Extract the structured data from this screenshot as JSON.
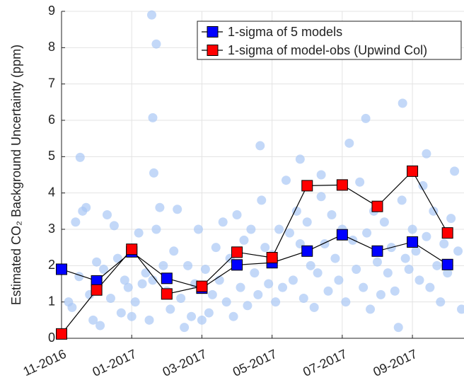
{
  "chart_data": {
    "type": "line",
    "ylabel": "Estimated CO₂ Background Uncertainty (ppm)",
    "x": [
      0,
      1,
      2,
      3,
      4,
      5,
      6,
      7,
      8,
      9,
      10,
      11
    ],
    "xlim": [
      0,
      11.47
    ],
    "xticks": [
      {
        "value": 0,
        "label": "11-2016"
      },
      {
        "value": 2,
        "label": "01-2017"
      },
      {
        "value": 4,
        "label": "03-2017"
      },
      {
        "value": 6,
        "label": "05-2017"
      },
      {
        "value": 8,
        "label": "07-2017"
      },
      {
        "value": 10,
        "label": "09-2017"
      }
    ],
    "ylim": [
      0,
      9
    ],
    "yticks": [
      0,
      1,
      2,
      3,
      4,
      5,
      6,
      7,
      8,
      9
    ],
    "grid": true,
    "legend": "upper right",
    "series": [
      {
        "name": "1-sigma of 5 models",
        "color": "#0000ff",
        "values": [
          1.9,
          1.58,
          2.38,
          1.65,
          1.38,
          2.02,
          2.08,
          2.4,
          2.85,
          2.4,
          2.65,
          2.03
        ]
      },
      {
        "name": "1-sigma of model-obs (Upwind Col)",
        "color": "#ff0000",
        "values": [
          0.12,
          1.33,
          2.45,
          1.22,
          1.43,
          2.37,
          2.22,
          4.2,
          4.22,
          3.63,
          4.6,
          2.9
        ]
      }
    ],
    "points": {
      "color": "#a9c8f5",
      "x": [
        0.2,
        0.3,
        0.4,
        0.5,
        0.6,
        0.7,
        0.8,
        0.9,
        1.0,
        1.1,
        1.2,
        1.3,
        1.4,
        1.5,
        1.6,
        1.7,
        1.8,
        1.9,
        2.0,
        2.1,
        2.2,
        2.3,
        2.4,
        2.5,
        2.6,
        2.7,
        2.8,
        2.9,
        3.0,
        3.1,
        3.2,
        3.3,
        3.4,
        3.5,
        3.6,
        3.7,
        3.8,
        3.9,
        4.0,
        4.1,
        4.2,
        4.3,
        4.4,
        4.5,
        4.6,
        4.7,
        4.8,
        4.9,
        5.0,
        5.1,
        5.2,
        5.3,
        5.4,
        5.5,
        5.6,
        5.7,
        5.8,
        5.9,
        6.0,
        6.1,
        6.2,
        6.3,
        6.5,
        6.6,
        6.7,
        6.8,
        6.9,
        7.0,
        7.1,
        7.2,
        7.3,
        7.4,
        7.5,
        7.6,
        7.7,
        7.8,
        7.9,
        8.0,
        8.1,
        8.3,
        8.4,
        8.5,
        8.6,
        8.7,
        8.8,
        8.9,
        9.0,
        9.1,
        9.2,
        9.3,
        9.4,
        9.5,
        9.6,
        9.7,
        9.8,
        9.9,
        10.0,
        10.1,
        10.2,
        10.3,
        10.4,
        10.5,
        10.6,
        10.7,
        10.8,
        10.9,
        11.0,
        11.1,
        11.2,
        11.3,
        11.4,
        2.57,
        2.7,
        2.6,
        2.63,
        0.53,
        5.66,
        8.67,
        9.72,
        8.2,
        10.4,
        6.8,
        7.4,
        6.4
      ],
      "values": [
        1.0,
        0.85,
        3.2,
        1.7,
        3.5,
        3.6,
        1.2,
        0.5,
        2.1,
        0.35,
        1.9,
        3.4,
        1.1,
        3.1,
        2.2,
        0.7,
        1.6,
        1.4,
        0.6,
        1.0,
        2.9,
        1.5,
        1.8,
        0.5,
        1.6,
        3.0,
        3.6,
        2.0,
        1.3,
        0.8,
        2.4,
        3.55,
        1.1,
        0.3,
        2.0,
        0.6,
        1.5,
        3.0,
        0.5,
        1.9,
        0.7,
        1.2,
        2.5,
        1.6,
        3.2,
        1.0,
        2.2,
        0.6,
        3.4,
        1.4,
        2.7,
        0.9,
        3.0,
        1.8,
        1.2,
        3.8,
        2.5,
        1.5,
        2.3,
        1.0,
        3.0,
        1.4,
        2.9,
        1.6,
        3.5,
        2.6,
        1.1,
        3.2,
        2.0,
        0.85,
        1.8,
        3.9,
        2.6,
        1.3,
        3.4,
        2.2,
        1.6,
        3.0,
        1.0,
        2.7,
        1.9,
        4.3,
        1.4,
        2.9,
        0.8,
        3.5,
        2.1,
        1.2,
        3.2,
        1.8,
        2.5,
        1.3,
        0.3,
        3.8,
        2.2,
        1.9,
        3.0,
        2.4,
        1.6,
        4.2,
        2.8,
        1.4,
        3.5,
        2.0,
        1.0,
        2.6,
        1.8,
        3.3,
        4.6,
        2.4,
        0.8,
        8.9,
        8.1,
        6.07,
        4.55,
        4.98,
        5.3,
        6.05,
        6.47,
        5.37,
        5.08,
        4.93,
        4.5,
        4.35
      ]
    }
  }
}
